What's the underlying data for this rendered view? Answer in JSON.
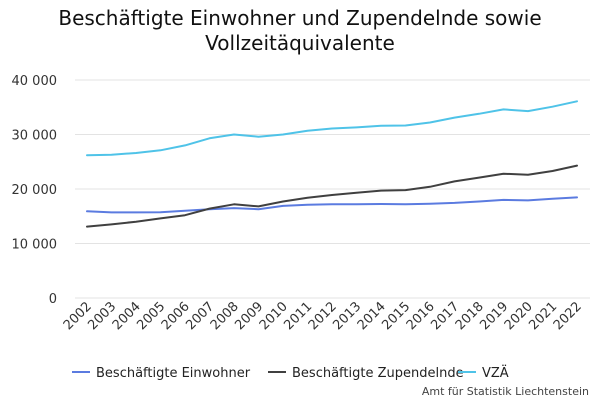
{
  "chart_data": {
    "type": "line",
    "title": "Beschäftigte Einwohner und Zupendelnde sowie Vollzeitäquivalente",
    "title_lines": [
      "Beschäftigte Einwohner und Zupendelnde sowie",
      "Vollzeitäquivalente"
    ],
    "x": [
      "2002",
      "2003",
      "2004",
      "2005",
      "2006",
      "2007",
      "2008",
      "2009",
      "2010",
      "2011",
      "2012",
      "2013",
      "2014",
      "2015",
      "2016",
      "2017",
      "2018",
      "2019",
      "2020",
      "2021",
      "2022"
    ],
    "ylim": [
      0,
      40000
    ],
    "yticks": [
      0,
      10000,
      20000,
      30000,
      40000
    ],
    "ytick_labels": [
      "0",
      "10 000",
      "20 000",
      "30 000",
      "40 000"
    ],
    "grid": true,
    "legend_position": "bottom",
    "series": [
      {
        "name": "Beschäftigte Einwohner",
        "color": "#5b7be0",
        "values": [
          15900,
          15700,
          15700,
          15750,
          16000,
          16300,
          16500,
          16300,
          16900,
          17100,
          17200,
          17200,
          17250,
          17200,
          17300,
          17450,
          17700,
          18000,
          17900,
          18200,
          18450
        ]
      },
      {
        "name": "Beschäftigte Zupendelnde",
        "color": "#404040",
        "values": [
          13100,
          13500,
          14000,
          14600,
          15200,
          16400,
          17200,
          16800,
          17700,
          18400,
          18900,
          19300,
          19700,
          19800,
          20400,
          21400,
          22100,
          22800,
          22600,
          23300,
          24300
        ]
      },
      {
        "name": "VZÄ",
        "color": "#4fc3e8",
        "values": [
          26200,
          26300,
          26600,
          27100,
          28000,
          29300,
          30000,
          29600,
          30000,
          30700,
          31100,
          31300,
          31600,
          31650,
          32200,
          33100,
          33800,
          34600,
          34300,
          35100,
          36100
        ]
      }
    ],
    "source": "Amt für Statistik Liechtenstein"
  }
}
